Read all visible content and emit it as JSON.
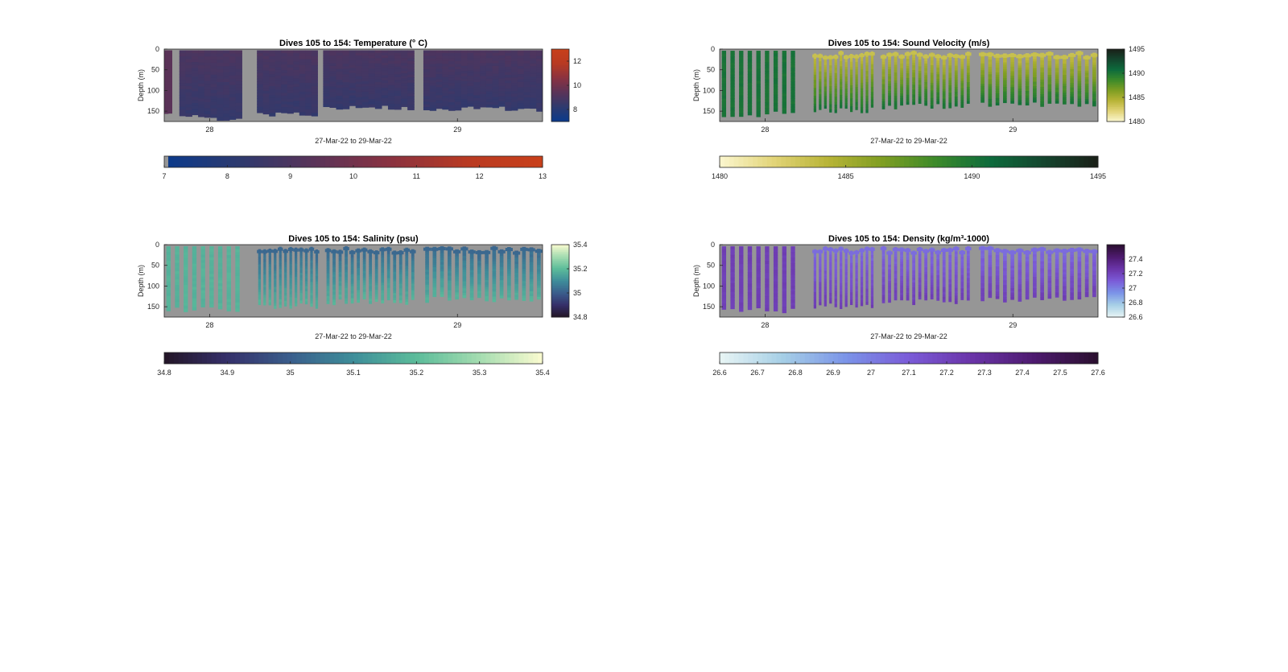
{
  "figure_background": "#ffffff",
  "axes_background": "#969696",
  "chart_data": [
    {
      "type": "heatmap",
      "title": "Dives 105 to 154: Temperature (° C)",
      "xlabel": "27-Mar-22 to 29-Mar-22",
      "ylabel": "Depth (m)",
      "x_ticks": [
        "28",
        "29"
      ],
      "y_ticks": [
        0,
        50,
        100,
        150
      ],
      "ylim": [
        0,
        175
      ],
      "y_reversed": true,
      "color_ticks": [
        8,
        10,
        12
      ],
      "color_range": [
        7,
        13
      ],
      "colorbar_ticks": [
        7,
        8,
        9,
        10,
        11,
        12,
        13
      ],
      "colormap": [
        "#0a3a8c",
        "#2e3a6e",
        "#5a3358",
        "#8a3240",
        "#b83a22",
        "#c8401a"
      ],
      "layout": "continuous",
      "dives": 50,
      "surface_value": 9.0,
      "deep_value": 8.4,
      "first_dive_value": 9.4
    },
    {
      "type": "heatmap",
      "title": "Dives 105 to 154: Sound Velocity (m/s)",
      "xlabel": "27-Mar-22 to 29-Mar-22",
      "ylabel": "Depth (m)",
      "x_ticks": [
        "28",
        "29"
      ],
      "y_ticks": [
        0,
        50,
        100,
        150
      ],
      "ylim": [
        0,
        175
      ],
      "y_reversed": true,
      "color_ticks": [
        1480,
        1485,
        1490,
        1495
      ],
      "color_range": [
        1480,
        1495
      ],
      "colorbar_ticks": [
        1480,
        1485,
        1490,
        1495
      ],
      "colormap": [
        "#fbf7cf",
        "#e2d478",
        "#b8b437",
        "#7f9e22",
        "#3c8a2a",
        "#0d6b3c",
        "#14452e",
        "#1a1f17"
      ],
      "layout": "striped",
      "dives": 50,
      "surface_value": 1483.5,
      "deep_value": 1490.2
    },
    {
      "type": "heatmap",
      "title": "Dives 105 to 154: Salinity (psu)",
      "xlabel": "27-Mar-22 to 29-Mar-22",
      "ylabel": "Depth (m)",
      "x_ticks": [
        "28",
        "29"
      ],
      "y_ticks": [
        0,
        50,
        100,
        150
      ],
      "ylim": [
        0,
        175
      ],
      "y_reversed": true,
      "color_ticks": [
        34.8,
        35,
        35.2,
        35.4
      ],
      "color_range": [
        34.8,
        35.4
      ],
      "colorbar_ticks": [
        34.8,
        34.9,
        35,
        35.1,
        35.2,
        35.3,
        35.4
      ],
      "colormap": [
        "#231526",
        "#35306a",
        "#3a5e8c",
        "#3e8e9a",
        "#5cbc9a",
        "#a4dcb0",
        "#fbfbd0"
      ],
      "layout": "striped",
      "dives": 50,
      "surface_value": 35.02,
      "deep_value": 35.18
    },
    {
      "type": "heatmap",
      "title": "Dives 105 to 154: Density (kg/m³-1000)",
      "xlabel": "27-Mar-22 to 29-Mar-22",
      "ylabel": "Depth (m)",
      "x_ticks": [
        "28",
        "29"
      ],
      "y_ticks": [
        0,
        50,
        100,
        150
      ],
      "ylim": [
        0,
        175
      ],
      "y_reversed": true,
      "color_ticks": [
        26.6,
        26.8,
        27,
        27.2,
        27.4
      ],
      "color_range": [
        26.6,
        27.6
      ],
      "colorbar_ticks": [
        26.6,
        26.7,
        26.8,
        26.9,
        27,
        27.1,
        27.2,
        27.3,
        27.4,
        27.5,
        27.6
      ],
      "colormap": [
        "#e8f5f5",
        "#a6cfe6",
        "#7b94e8",
        "#7b5bd8",
        "#6a34a8",
        "#4d1a6e",
        "#2a0f2e"
      ],
      "layout": "striped",
      "dives": 50,
      "surface_value": 27.05,
      "deep_value": 27.22
    }
  ]
}
